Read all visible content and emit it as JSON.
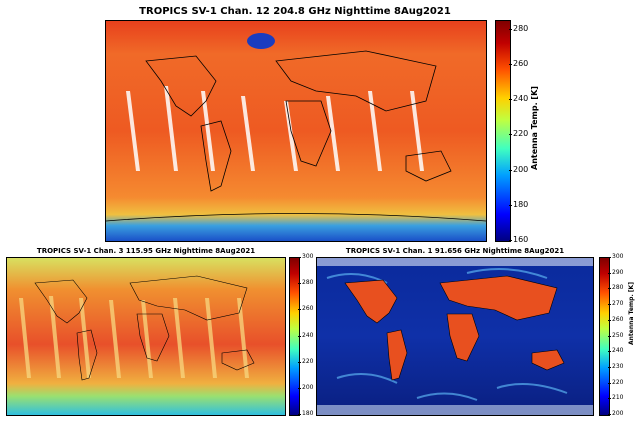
{
  "colors": {
    "map_hot": "#e8461f",
    "map_warm": "#f07a2a",
    "map_cool": "#2f8be0",
    "map_cold": "#0a1f8c",
    "land_line": "#000000",
    "colormap": [
      "#000080",
      "#0000ff",
      "#00a0ff",
      "#40ffc0",
      "#c0ff40",
      "#ffd000",
      "#ff5000",
      "#c00000",
      "#800000"
    ]
  },
  "panels": [
    {
      "id": "top",
      "title": "TROPICS SV-1 Chan. 12 204.8 GHz Nighttime 8Aug2021",
      "colorbar_label": "Antenna Temp. [K]",
      "colorbar_range": [
        160,
        285
      ],
      "ticks": [
        "160",
        "180",
        "200",
        "220",
        "240",
        "260",
        "280"
      ],
      "tick_values": [
        160,
        180,
        200,
        220,
        240,
        260,
        280
      ]
    },
    {
      "id": "bottom-left",
      "title": "TROPICS SV-1 Chan. 3 115.95 GHz Nighttime 8Aug2021",
      "colorbar_label": "",
      "colorbar_range": [
        180,
        300
      ],
      "ticks": [
        "180",
        "200",
        "220",
        "240",
        "260",
        "280",
        "300"
      ],
      "tick_values": [
        180,
        200,
        220,
        240,
        260,
        280,
        300
      ]
    },
    {
      "id": "bottom-right",
      "title": "TROPICS SV-1 Chan. 1 91.656 GHz Nighttime 8Aug2021",
      "colorbar_label": "Antenna Temp. [K]",
      "colorbar_range": [
        200,
        300
      ],
      "ticks": [
        "200",
        "210",
        "220",
        "230",
        "240",
        "250",
        "260",
        "270",
        "280",
        "290",
        "300"
      ],
      "tick_values": [
        200,
        210,
        220,
        230,
        240,
        250,
        260,
        270,
        280,
        290,
        300
      ]
    }
  ]
}
